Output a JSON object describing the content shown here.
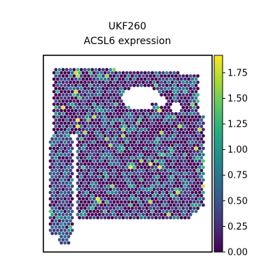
{
  "chart_data": {
    "type": "scatter",
    "subtype": "spatial-hexbin",
    "title_lines": [
      "UKF260",
      "ACSL6 expression"
    ],
    "xlabel": "",
    "ylabel": "",
    "axes_ticks": "off",
    "grid": false,
    "colormap": "viridis",
    "colorbar": {
      "placement": "right",
      "range": [
        0,
        1.92
      ],
      "ticks": [
        0.0,
        0.25,
        0.5,
        0.75,
        1.0,
        1.25,
        1.5,
        1.75
      ],
      "tick_labels": [
        "0.00",
        "0.25",
        "0.50",
        "0.75",
        "1.00",
        "1.25",
        "1.50",
        "1.75"
      ]
    },
    "value_distribution": {
      "background_value": 0.0,
      "typical_range": [
        0.25,
        0.9
      ],
      "max_value": 1.9
    }
  }
}
